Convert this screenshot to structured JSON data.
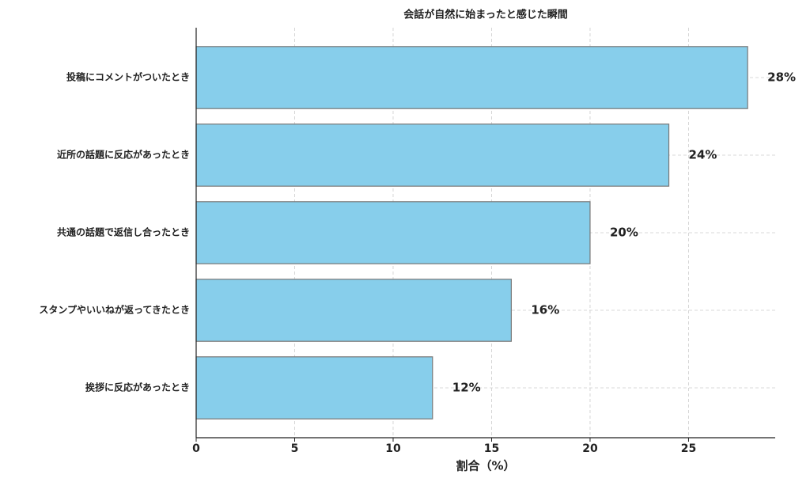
{
  "chart_data": {
    "type": "barh",
    "title": "会話が自然に始まったと感じた瞬間",
    "x_label": "割合（%）",
    "categories": [
      "投稿にコメントがついたとき",
      "近所の話題に反応があったとき",
      "共通の話題で返信し合ったとき",
      "スタンプやいいねが返ってきたとき",
      "挨拶に反応があったとき"
    ],
    "values": [
      28,
      24,
      20,
      16,
      12
    ],
    "value_labels": [
      "28%",
      "24%",
      "20%",
      "16%",
      "12%"
    ],
    "color": "#87ceeb",
    "edge_color": "#777777",
    "xlim": [
      0,
      29.4
    ],
    "xticks": [
      0,
      5,
      10,
      15,
      20,
      25
    ],
    "grid": true
  }
}
